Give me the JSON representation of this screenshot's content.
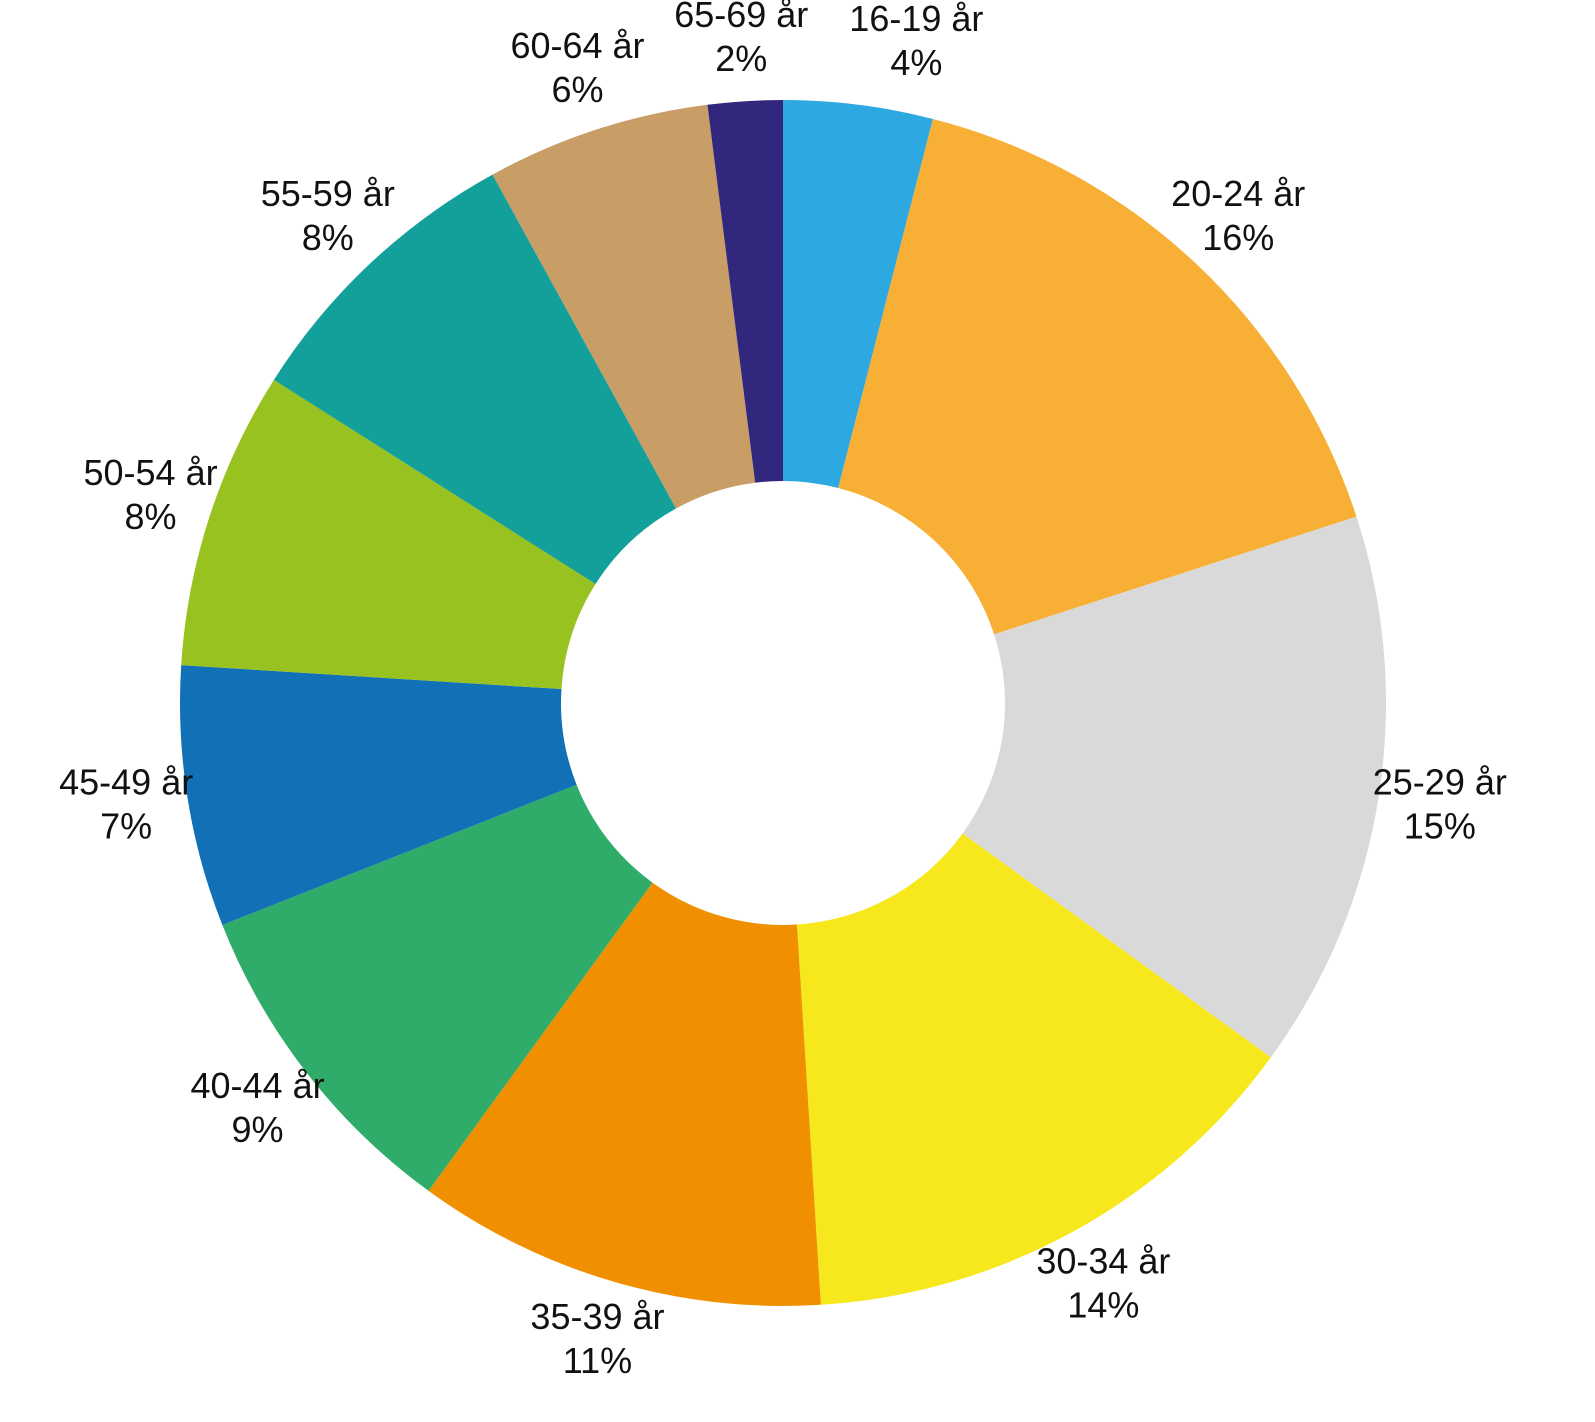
{
  "chart_data": {
    "type": "donut",
    "categories": [
      "16-19 år",
      "20-24 år",
      "25-29 år",
      "30-34 år",
      "35-39 år",
      "40-44 år",
      "45-49 år",
      "50-54 år",
      "55-59 år",
      "60-64 år",
      "65-69 år"
    ],
    "values": [
      4,
      16,
      15,
      14,
      11,
      9,
      7,
      8,
      8,
      6,
      2
    ],
    "value_labels": [
      "4%",
      "16%",
      "15%",
      "14%",
      "11%",
      "9%",
      "7%",
      "8%",
      "8%",
      "6%",
      "2%"
    ],
    "colors": [
      "#2ea8e0",
      "#f7b035",
      "#d9d9d9",
      "#f6e81c",
      "#f09000",
      "#2fac6a",
      "#1170b6",
      "#97c21f",
      "#13a09b",
      "#c89d66",
      "#31287e"
    ]
  }
}
